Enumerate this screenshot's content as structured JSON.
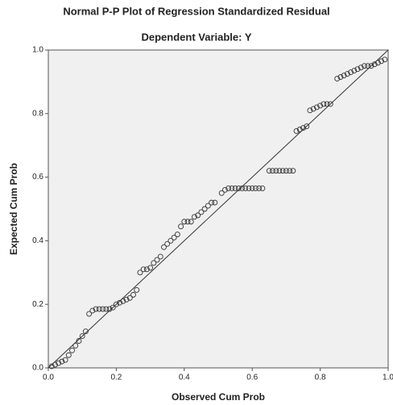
{
  "chart_data": {
    "type": "scatter",
    "title": "Normal P-P Plot of Regression Standardized Residual",
    "subtitle": "Dependent Variable: Y",
    "x_label": "Observed Cum Prob",
    "y_label": "Expected Cum Prob",
    "xlim": [
      0,
      1
    ],
    "ylim": [
      0,
      1
    ],
    "xticks": [
      {
        "value": 0,
        "label": "0.0"
      },
      0.2,
      0.4,
      0.6,
      0.8,
      {
        "value": 1,
        "label": "1.0"
      }
    ],
    "yticks": [
      {
        "value": 0,
        "label": "0.0"
      },
      0.2,
      0.4,
      0.6,
      0.8,
      {
        "value": 1,
        "label": "1.0"
      }
    ],
    "color": "#333333",
    "x": [
      0.01,
      0.02,
      0.03,
      0.04,
      0.05,
      0.06,
      0.07,
      0.08,
      0.09,
      0.1,
      0.11,
      0.12,
      0.13,
      0.14,
      0.15,
      0.16,
      0.17,
      0.18,
      0.19,
      0.2,
      0.21,
      0.22,
      0.23,
      0.24,
      0.25,
      0.26,
      0.27,
      0.28,
      0.29,
      0.3,
      0.31,
      0.32,
      0.33,
      0.34,
      0.35,
      0.36,
      0.37,
      0.38,
      0.39,
      0.4,
      0.41,
      0.42,
      0.43,
      0.44,
      0.45,
      0.46,
      0.47,
      0.48,
      0.49,
      0.51,
      0.52,
      0.53,
      0.54,
      0.55,
      0.56,
      0.57,
      0.58,
      0.59,
      0.6,
      0.61,
      0.62,
      0.63,
      0.65,
      0.66,
      0.67,
      0.68,
      0.69,
      0.7,
      0.71,
      0.72,
      0.73,
      0.74,
      0.75,
      0.76,
      0.77,
      0.78,
      0.79,
      0.8,
      0.81,
      0.82,
      0.83,
      0.85,
      0.86,
      0.87,
      0.88,
      0.89,
      0.9,
      0.91,
      0.92,
      0.93,
      0.94,
      0.95,
      0.96,
      0.97,
      0.98,
      0.99
    ],
    "values": [
      0.005,
      0.01,
      0.015,
      0.02,
      0.025,
      0.04,
      0.055,
      0.07,
      0.085,
      0.1,
      0.115,
      0.17,
      0.18,
      0.185,
      0.185,
      0.185,
      0.185,
      0.185,
      0.19,
      0.2,
      0.205,
      0.21,
      0.215,
      0.22,
      0.23,
      0.245,
      0.3,
      0.31,
      0.31,
      0.315,
      0.33,
      0.34,
      0.35,
      0.38,
      0.39,
      0.4,
      0.41,
      0.42,
      0.445,
      0.46,
      0.46,
      0.46,
      0.475,
      0.48,
      0.49,
      0.5,
      0.51,
      0.52,
      0.52,
      0.55,
      0.56,
      0.565,
      0.565,
      0.565,
      0.565,
      0.565,
      0.565,
      0.565,
      0.565,
      0.565,
      0.565,
      0.565,
      0.62,
      0.62,
      0.62,
      0.62,
      0.62,
      0.62,
      0.62,
      0.62,
      0.745,
      0.75,
      0.755,
      0.76,
      0.81,
      0.815,
      0.82,
      0.825,
      0.83,
      0.83,
      0.83,
      0.91,
      0.915,
      0.92,
      0.925,
      0.93,
      0.935,
      0.94,
      0.945,
      0.95,
      0.95,
      0.95,
      0.955,
      0.96,
      0.965,
      0.97
    ]
  }
}
